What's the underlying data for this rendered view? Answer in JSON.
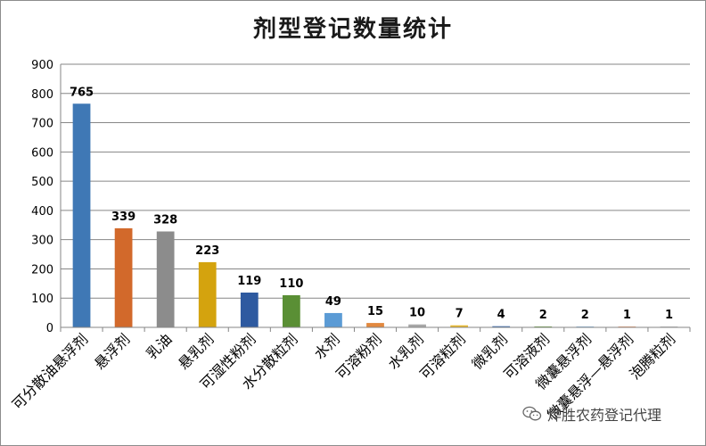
{
  "chart_data": {
    "type": "bar",
    "title": "剂型登记数量统计",
    "categories": [
      "可分散油悬浮剂",
      "悬浮剂",
      "乳油",
      "悬乳剂",
      "可湿性粉剂",
      "水分散粒剂",
      "水剂",
      "可溶粉剂",
      "水乳剂",
      "可溶粒剂",
      "微乳剂",
      "可溶液剂",
      "微囊悬浮剂",
      "微囊悬浮—悬浮剂",
      "泡腾粒剂"
    ],
    "values": [
      765,
      339,
      328,
      223,
      119,
      110,
      49,
      15,
      10,
      7,
      4,
      2,
      2,
      1,
      1
    ],
    "colors": [
      "#3f78b5",
      "#d2692b",
      "#8c8c8c",
      "#d4a30e",
      "#2e5aa0",
      "#5a8f35",
      "#5b9bd5",
      "#e2883f",
      "#a8a8a8",
      "#e8b92f",
      "#3f6fb0",
      "#6a9f3e",
      "#8cb8e0",
      "#f0a070",
      "#c0c0c0"
    ],
    "yticks": [
      0,
      100,
      200,
      300,
      400,
      500,
      600,
      700,
      800,
      900
    ],
    "ylim": [
      0,
      900
    ],
    "grid": true,
    "data_labels": true
  },
  "watermark": {
    "text": "烨胜农药登记代理",
    "icon": "wechat-icon"
  }
}
